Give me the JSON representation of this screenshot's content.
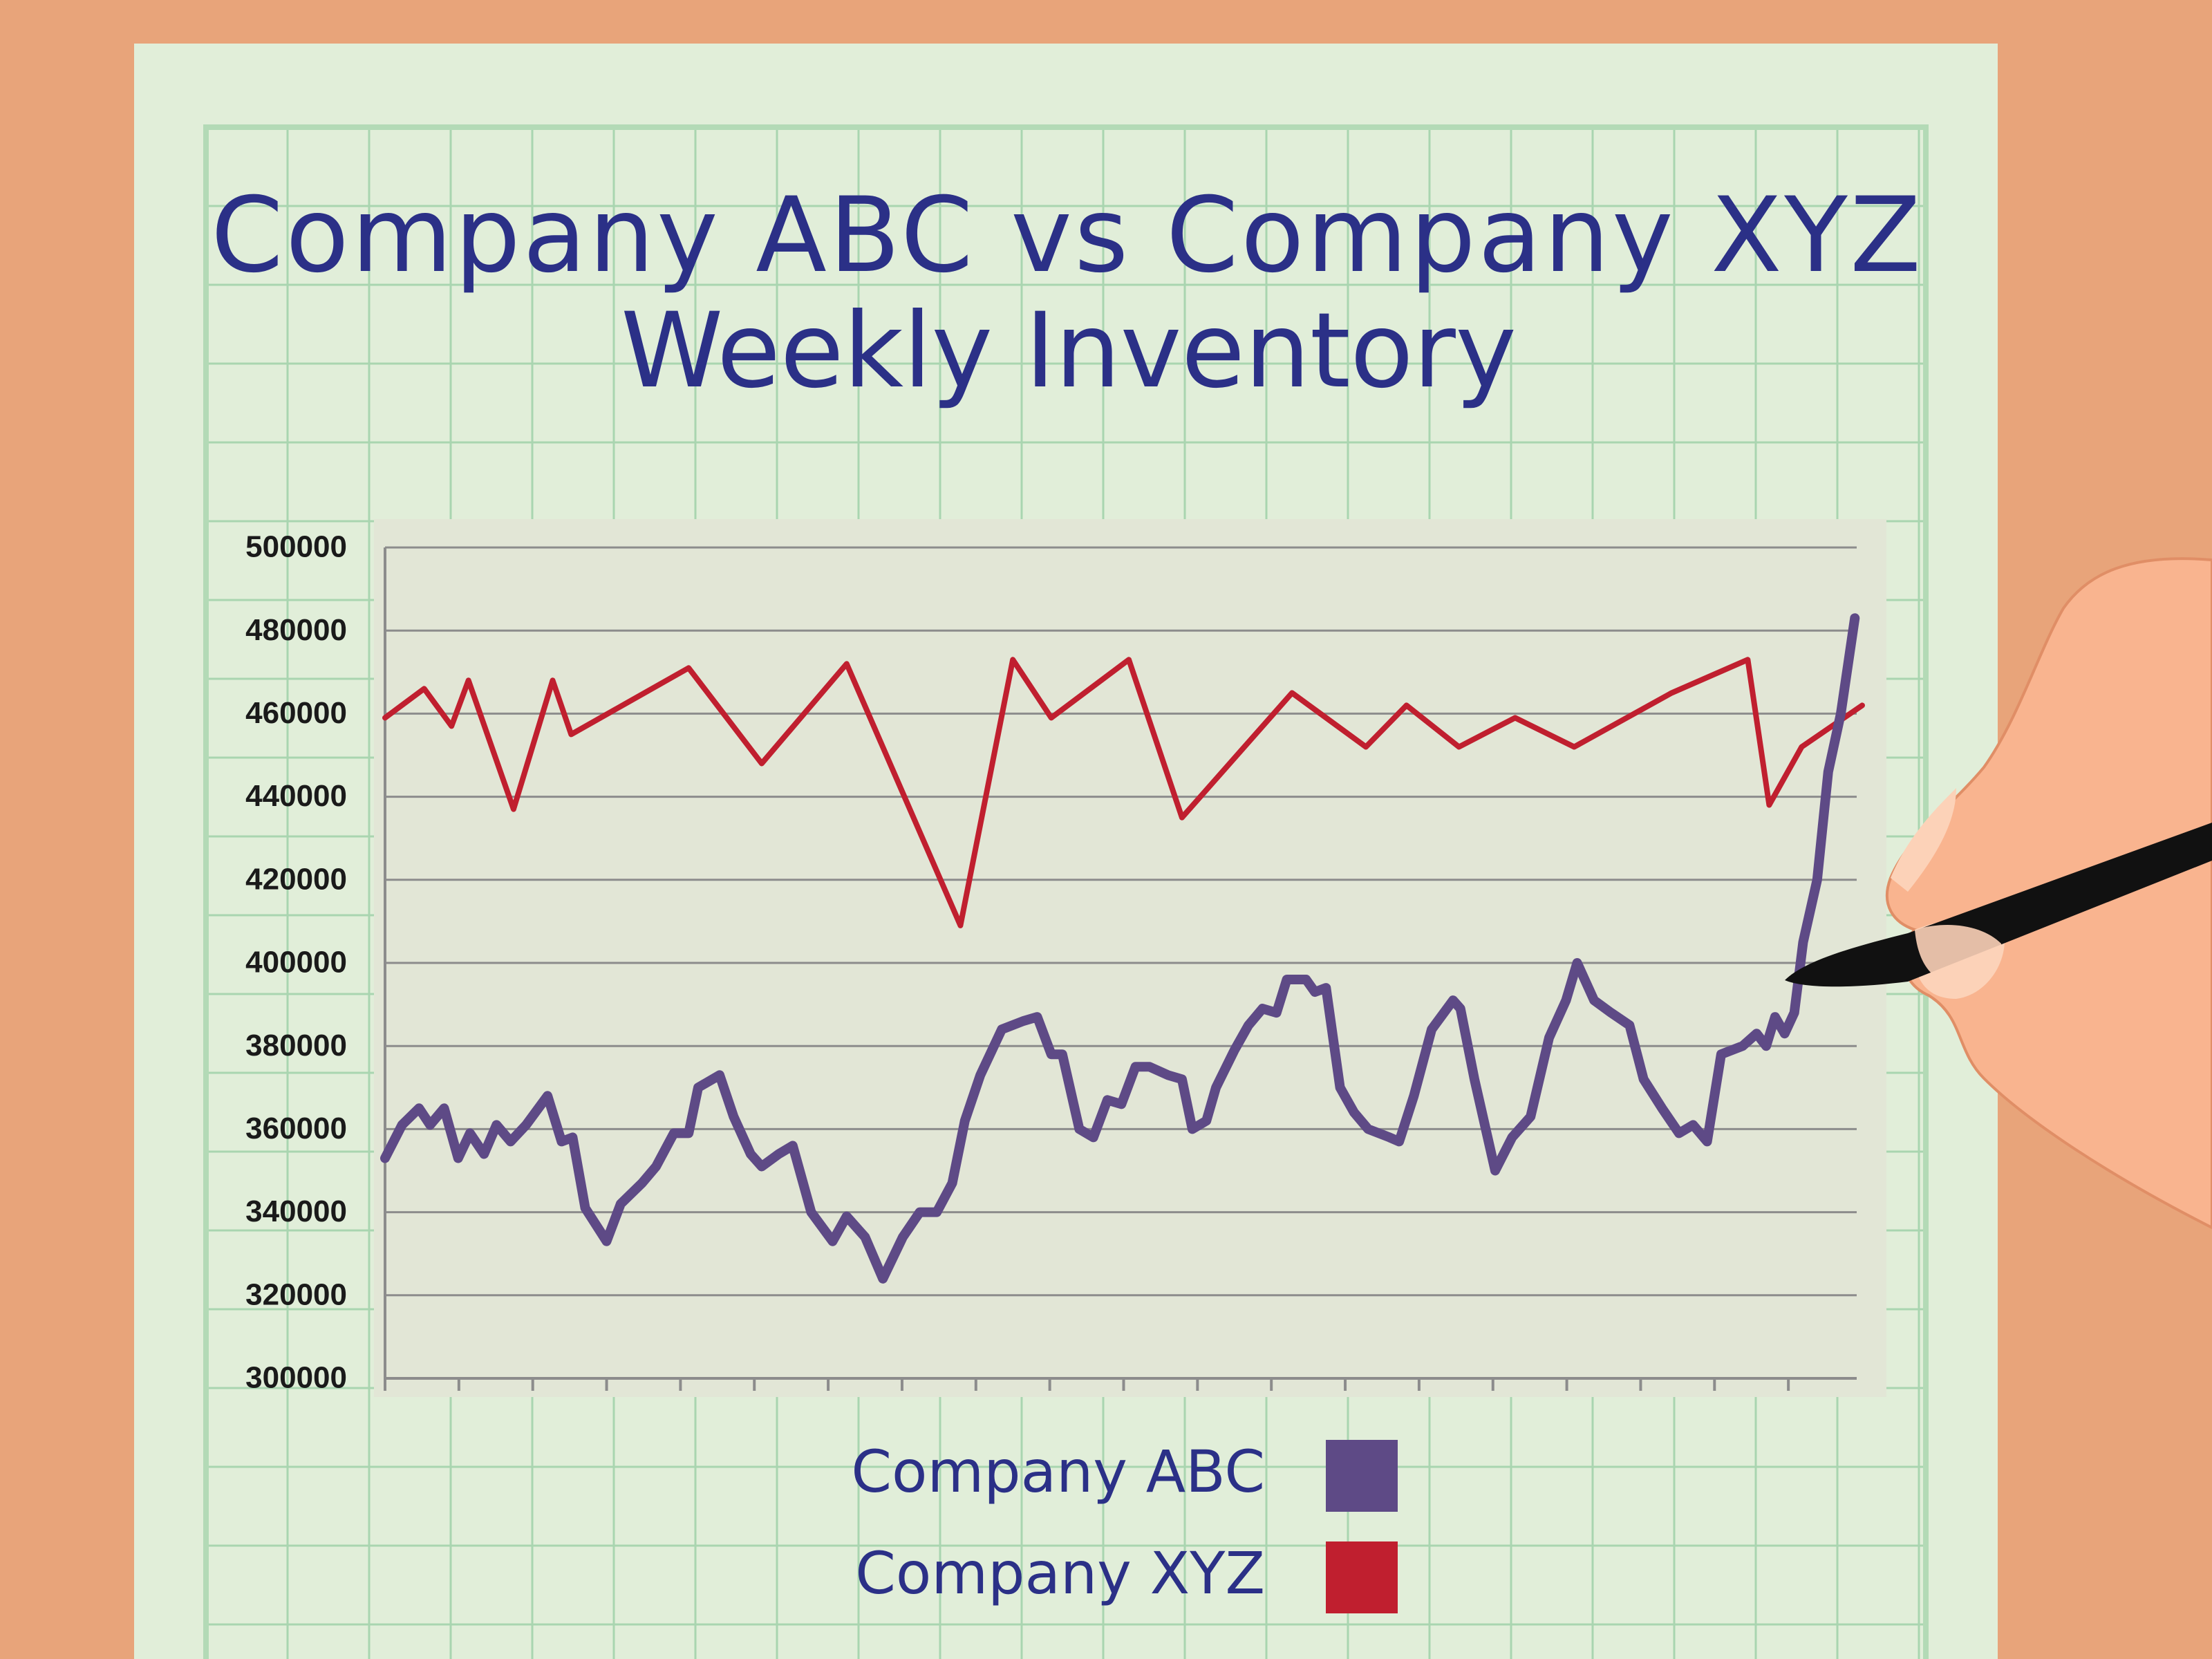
{
  "chart_data": {
    "type": "line",
    "title": [
      "Company ABC vs Company XYZ",
      "Weekly Inventory"
    ],
    "xlim": [
      0,
      20
    ],
    "xticks": [
      0,
      1,
      2,
      3,
      4,
      5,
      6,
      7,
      8,
      9,
      10,
      11,
      12,
      13,
      14,
      15,
      16,
      17,
      18,
      19
    ],
    "ylim": [
      300000,
      500000
    ],
    "yticks": [
      300000,
      320000,
      340000,
      360000,
      380000,
      400000,
      420000,
      440000,
      460000,
      480000,
      500000
    ],
    "grid": true,
    "legend": "bottom",
    "series": [
      {
        "name": "Company ABC",
        "color": "#5e4a86",
        "x": [
          0,
          0.23,
          0.46,
          0.61,
          0.8,
          0.99,
          1.15,
          1.34,
          1.51,
          1.7,
          1.91,
          2.2,
          2.39,
          2.54,
          2.71,
          3,
          3.19,
          3.48,
          3.67,
          3.91,
          4.11,
          4.24,
          4.53,
          4.72,
          4.95,
          5.1,
          5.33,
          5.52,
          5.77,
          6.06,
          6.25,
          6.5,
          6.74,
          7.01,
          7.24,
          7.47,
          7.68,
          7.85,
          8.06,
          8.35,
          8.64,
          8.83,
          9.02,
          9.17,
          9.4,
          9.59,
          9.78,
          9.97,
          10.16,
          10.35,
          10.6,
          10.79,
          10.93,
          11.12,
          11.25,
          11.5,
          11.69,
          11.88,
          12.07,
          12.21,
          12.47,
          12.59,
          12.74,
          12.93,
          13.12,
          13.31,
          13.6,
          13.73,
          13.93,
          14.17,
          14.46,
          14.56,
          14.75,
          15.03,
          15.26,
          15.51,
          15.76,
          15.99,
          16.14,
          16.37,
          16.6,
          16.85,
          17.04,
          17.29,
          17.52,
          17.71,
          17.9,
          18.09,
          18.38,
          18.57,
          18.7,
          18.82,
          18.95,
          19.08,
          19.2,
          19.39,
          19.54,
          19.71,
          19.9
        ],
        "values": [
          353000,
          361000,
          365000,
          361000,
          365000,
          353000,
          359000,
          354000,
          361000,
          357000,
          361000,
          368000,
          357000,
          358000,
          341000,
          333000,
          342000,
          347000,
          351000,
          359000,
          359000,
          370000,
          373000,
          363000,
          354000,
          351000,
          354000,
          356000,
          340000,
          333000,
          339000,
          334000,
          324000,
          334000,
          340000,
          340000,
          347000,
          362000,
          373000,
          384000,
          386000,
          387000,
          378000,
          378000,
          360000,
          358000,
          367000,
          366000,
          375000,
          375000,
          373000,
          372000,
          360000,
          362000,
          370000,
          379000,
          385000,
          389000,
          388000,
          396000,
          396000,
          393000,
          394000,
          370000,
          364000,
          360000,
          358000,
          357000,
          368000,
          384000,
          391000,
          389000,
          372000,
          350000,
          358000,
          363000,
          382000,
          391000,
          400000,
          391000,
          388000,
          385000,
          372000,
          365000,
          359000,
          361000,
          357000,
          378000,
          380000,
          383000,
          380000,
          387000,
          383000,
          388000,
          405000,
          420000,
          446000,
          460000,
          483000
        ]
      },
      {
        "name": "Company XYZ",
        "color": "#c01f2f",
        "x": [
          0,
          0.53,
          0.9,
          1.13,
          1.74,
          2.27,
          2.52,
          4.11,
          5.1,
          6.25,
          7.79,
          8.5,
          9.02,
          10.07,
          10.79,
          12.28,
          13.28,
          13.83,
          14.54,
          15.3,
          16.1,
          17.42,
          18.45,
          18.74,
          19.18,
          20
        ],
        "values": [
          459000,
          466000,
          457000,
          468000,
          437000,
          468000,
          455000,
          471000,
          448000,
          472000,
          409000,
          473000,
          459000,
          473000,
          435000,
          465000,
          452000,
          462000,
          452000,
          459000,
          452000,
          465000,
          473000,
          438000,
          452000,
          462000
        ]
      }
    ]
  }
}
